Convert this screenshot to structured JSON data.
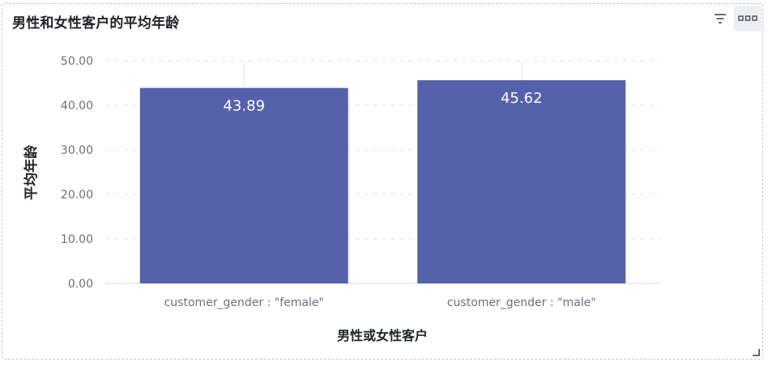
{
  "panel": {
    "title": "男性和女性客户的平均年龄",
    "filter_icon": "filter-icon",
    "more_icon": "more-options-icon"
  },
  "colors": {
    "bar": "#5661ab",
    "grid": "#e3e5ea",
    "axis_text": "#6b6f78",
    "title_text": "#1f2329"
  },
  "chart_data": {
    "type": "bar",
    "categories": [
      "customer_gender : \"female\"",
      "customer_gender : \"male\""
    ],
    "values": [
      43.89,
      45.62
    ],
    "value_labels": [
      "43.89",
      "45.62"
    ],
    "title": "男性和女性客户的平均年龄",
    "xlabel": "男性或女性客户",
    "ylabel": "平均年龄",
    "ylim": [
      0,
      50
    ],
    "yticks": [
      "0.00",
      "10.00",
      "20.00",
      "30.00",
      "40.00",
      "50.00"
    ],
    "ytick_values": [
      0,
      10,
      20,
      30,
      40,
      50
    ],
    "grid": true
  }
}
